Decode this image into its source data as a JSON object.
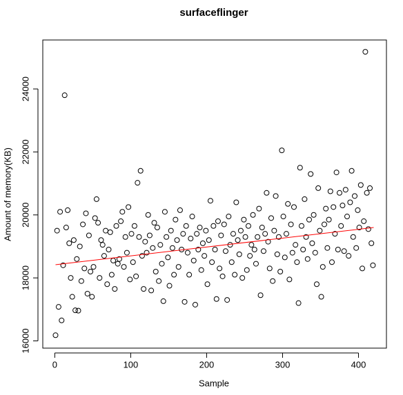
{
  "chart_data": {
    "type": "scatter",
    "title": "surfaceflinger",
    "x_label": "Sample",
    "y_label": "Amount of memory(KB)",
    "color": "#000000",
    "x": [
      1,
      3,
      5,
      7,
      9,
      11,
      13,
      15,
      17,
      19,
      21,
      23,
      25,
      27,
      29,
      31,
      33,
      35,
      37,
      39,
      41,
      43,
      45,
      47,
      49,
      51,
      53,
      55,
      57,
      59,
      61,
      63,
      65,
      67,
      69,
      71,
      73,
      75,
      77,
      79,
      81,
      83,
      85,
      87,
      89,
      91,
      93,
      95,
      97,
      99,
      101,
      103,
      105,
      107,
      109,
      111,
      113,
      115,
      117,
      119,
      121,
      123,
      125,
      127,
      129,
      131,
      133,
      135,
      137,
      139,
      141,
      143,
      145,
      147,
      149,
      151,
      153,
      155,
      157,
      159,
      161,
      163,
      165,
      167,
      169,
      171,
      173,
      175,
      177,
      179,
      181,
      183,
      185,
      187,
      189,
      191,
      193,
      195,
      197,
      199,
      201,
      203,
      205,
      207,
      209,
      211,
      213,
      215,
      217,
      219,
      221,
      223,
      225,
      227,
      229,
      231,
      233,
      235,
      237,
      239,
      241,
      243,
      245,
      247,
      249,
      251,
      253,
      255,
      257,
      259,
      261,
      263,
      265,
      267,
      269,
      271,
      273,
      275,
      277,
      279,
      281,
      283,
      285,
      287,
      289,
      291,
      293,
      295,
      297,
      299,
      301,
      303,
      305,
      307,
      309,
      311,
      313,
      315,
      317,
      319,
      321,
      323,
      325,
      327,
      329,
      331,
      333,
      335,
      337,
      339,
      341,
      343,
      345,
      347,
      349,
      351,
      353,
      355,
      357,
      359,
      361,
      363,
      365,
      367,
      369,
      371,
      373,
      375,
      377,
      379,
      381,
      383,
      385,
      387,
      389,
      391,
      393,
      395,
      397,
      399,
      401,
      403,
      405,
      407,
      409,
      411,
      413,
      415,
      417,
      419
    ],
    "values": [
      16180,
      19500,
      17080,
      20100,
      16650,
      18400,
      23800,
      19600,
      20150,
      19100,
      18000,
      17400,
      19200,
      16970,
      18600,
      16960,
      19000,
      17900,
      19700,
      18300,
      20050,
      17500,
      19350,
      18200,
      17400,
      18350,
      19900,
      20500,
      19750,
      18000,
      19200,
      19050,
      18700,
      19500,
      17800,
      18900,
      19450,
      18100,
      18550,
      17650,
      19650,
      18450,
      18600,
      19800,
      20100,
      18350,
      19300,
      18800,
      20250,
      17950,
      19400,
      18500,
      19650,
      18050,
      21020,
      19300,
      21400,
      18700,
      17650,
      19150,
      18800,
      20000,
      19350,
      17600,
      18950,
      19750,
      18200,
      19600,
      17900,
      19050,
      18450,
      17260,
      20100,
      19300,
      18650,
      17750,
      19500,
      18950,
      18100,
      19850,
      19200,
      18350,
      20150,
      18900,
      19400,
      17240,
      19650,
      18800,
      18100,
      19250,
      19950,
      18550,
      17150,
      19400,
      18900,
      19600,
      18250,
      19100,
      18700,
      19500,
      17800,
      19200,
      20450,
      18500,
      19650,
      18900,
      17330,
      19800,
      18300,
      19350,
      18050,
      19700,
      18850,
      17300,
      19950,
      19050,
      18500,
      19400,
      18100,
      20400,
      19200,
      18750,
      19500,
      18000,
      19850,
      19300,
      18250,
      19650,
      18700,
      19050,
      20000,
      18900,
      18450,
      19300,
      20200,
      17450,
      19600,
      18850,
      19400,
      20700,
      19150,
      18300,
      19900,
      17900,
      19500,
      20600,
      18750,
      19300,
      18200,
      22050,
      19950,
      18650,
      19400,
      20350,
      17950,
      19700,
      18800,
      20250,
      19050,
      18500,
      17200,
      21500,
      19650,
      18900,
      20500,
      19300,
      18600,
      19850,
      21300,
      19100,
      20000,
      18800,
      17800,
      20850,
      19500,
      17400,
      18350,
      19700,
      20200,
      18950,
      19850,
      20750,
      18500,
      20250,
      19400,
      21350,
      18900,
      20700,
      19650,
      20300,
      18850,
      20800,
      19950,
      18700,
      20400,
      21400,
      19300,
      20600,
      18950,
      20150,
      19600,
      20950,
      18300,
      19800,
      25180,
      20700,
      19550,
      20850,
      19100,
      18400
    ],
    "trend": {
      "x": [
        1,
        420
      ],
      "y": [
        18420,
        19600
      ],
      "color": "#ff0000"
    },
    "xlim": [
      -15.8,
      436.8
    ],
    "xticks": [
      0,
      100,
      200,
      300,
      400
    ],
    "ylim": [
      15770,
      25555
    ],
    "yticks": [
      16000,
      18000,
      20000,
      22000,
      24000
    ]
  }
}
